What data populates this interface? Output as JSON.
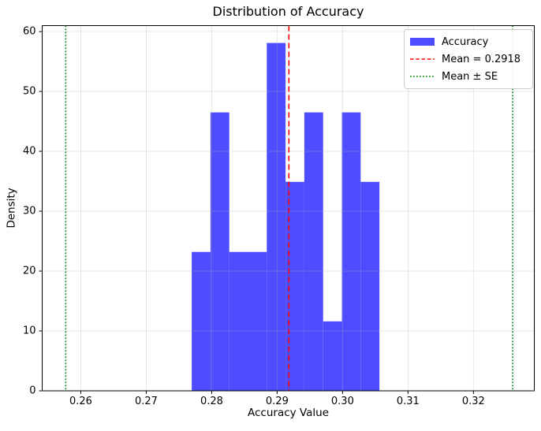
{
  "chart_data": {
    "type": "bar",
    "subtype": "histogram",
    "title": "Distribution of Accuracy",
    "xlabel": "Accuracy Value",
    "ylabel": "Density",
    "xlim": [
      0.2541,
      0.3293
    ],
    "ylim": [
      0,
      61
    ],
    "x_ticks": [
      0.26,
      0.27,
      0.28,
      0.29,
      0.3,
      0.31,
      0.32
    ],
    "x_tick_labels": [
      "0.26",
      "0.27",
      "0.28",
      "0.29",
      "0.30",
      "0.31",
      "0.32"
    ],
    "y_ticks": [
      0,
      10,
      20,
      30,
      40,
      50,
      60
    ],
    "y_tick_labels": [
      "0",
      "10",
      "20",
      "30",
      "40",
      "50",
      "60"
    ],
    "grid": true,
    "grid_color": "rgba(176,176,176,0.35)",
    "histogram": {
      "label": "Accuracy",
      "color": "#4d4dff",
      "bin_start": 0.27695,
      "bin_width": 0.002868,
      "densities": [
        23.2,
        46.5,
        23.2,
        23.2,
        58.1,
        34.9,
        46.5,
        11.6,
        46.5,
        34.9
      ]
    },
    "mean_line": {
      "label": "Mean = 0.2918",
      "value": 0.2918,
      "color": "#ff0000",
      "style": "dashed"
    },
    "se_lines": {
      "label": "Mean ± SE",
      "values": [
        0.2577,
        0.326
      ],
      "color": "#008000",
      "style": "dotted"
    },
    "legend": {
      "position": "upper right"
    }
  }
}
